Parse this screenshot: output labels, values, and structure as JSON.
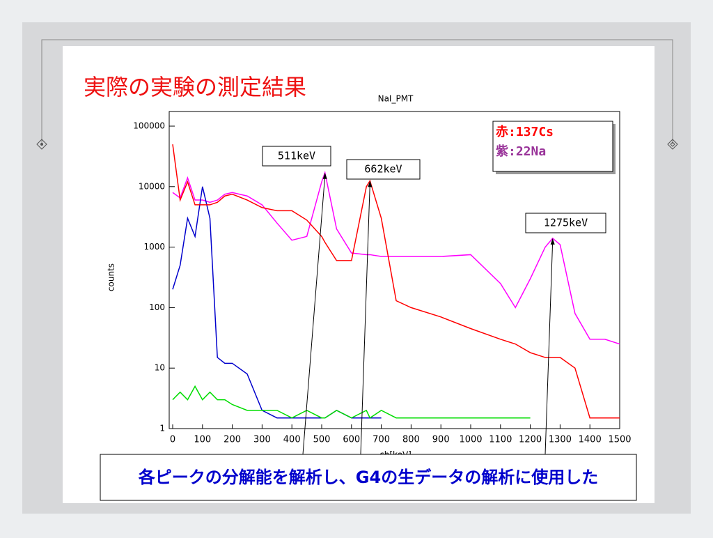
{
  "slide": {
    "title": "実際の実験の測定結果",
    "caption": "各ピークの分解能を解析し、G4の生データの解析に使用した"
  },
  "chart_data": {
    "type": "line",
    "title": "NaI_PMT",
    "xlabel": "ch[keV]",
    "ylabel": "counts",
    "yscale": "log",
    "xlim": [
      0,
      1500
    ],
    "ylim": [
      1,
      100000
    ],
    "xticks": [
      0,
      100,
      200,
      300,
      400,
      500,
      600,
      700,
      800,
      900,
      1000,
      1100,
      1200,
      1300,
      1400,
      1500
    ],
    "yticks": [
      1,
      10,
      100,
      1000,
      10000,
      100000
    ],
    "x": [
      0,
      25,
      50,
      75,
      100,
      125,
      150,
      175,
      200,
      250,
      300,
      350,
      400,
      450,
      500,
      511,
      550,
      600,
      650,
      662,
      700,
      750,
      800,
      900,
      1000,
      1100,
      1150,
      1200,
      1250,
      1275,
      1300,
      1350,
      1400,
      1450,
      1500
    ],
    "series": [
      {
        "color": "#ff00ff",
        "values": [
          8000,
          6500,
          14000,
          6000,
          6000,
          5500,
          6000,
          7500,
          8000,
          7000,
          5000,
          2500,
          1300,
          1500,
          12000,
          17000,
          2000,
          800,
          750,
          750,
          700,
          700,
          700,
          700,
          750,
          250,
          100,
          300,
          1000,
          1400,
          1100,
          80,
          30,
          30,
          25
        ]
      },
      {
        "color": "#0000cc",
        "values": [
          200,
          500,
          3000,
          1500,
          10000,
          3000,
          15,
          12,
          12,
          8,
          2,
          1.5,
          1.5,
          1.5,
          1.5,
          1.5,
          2,
          1.5,
          1.5,
          1.5,
          1.5,
          null,
          null,
          null,
          null,
          null,
          null,
          null,
          null,
          null,
          null,
          null,
          null,
          null,
          null
        ]
      },
      {
        "color": "#00dd00",
        "values": [
          3,
          4,
          3,
          5,
          3,
          4,
          3,
          3,
          2.5,
          2,
          2,
          2,
          1.5,
          2,
          1.5,
          1.5,
          2,
          1.5,
          2,
          1.5,
          2,
          1.5,
          1.5,
          1.5,
          1.5,
          1.5,
          1.5,
          1.5,
          null,
          null,
          null,
          null,
          null,
          null,
          null
        ]
      },
      {
        "color": "#ff0000",
        "values": [
          50000,
          6000,
          12000,
          5000,
          5000,
          5000,
          5500,
          7000,
          7500,
          6000,
          4500,
          4000,
          4000,
          2800,
          1500,
          1200,
          600,
          600,
          10000,
          12500,
          3000,
          130,
          100,
          70,
          45,
          30,
          25,
          18,
          15,
          15,
          15,
          10,
          1.5,
          1.5,
          1.5
        ]
      }
    ],
    "legend_texts": [
      "赤:137Cs",
      "紫:22Na"
    ],
    "annotations": [
      {
        "text": "511keV",
        "x": 511,
        "y": 17000
      },
      {
        "text": "662keV",
        "x": 662,
        "y": 12500
      },
      {
        "text": "1275keV",
        "x": 1275,
        "y": 1400
      }
    ]
  }
}
